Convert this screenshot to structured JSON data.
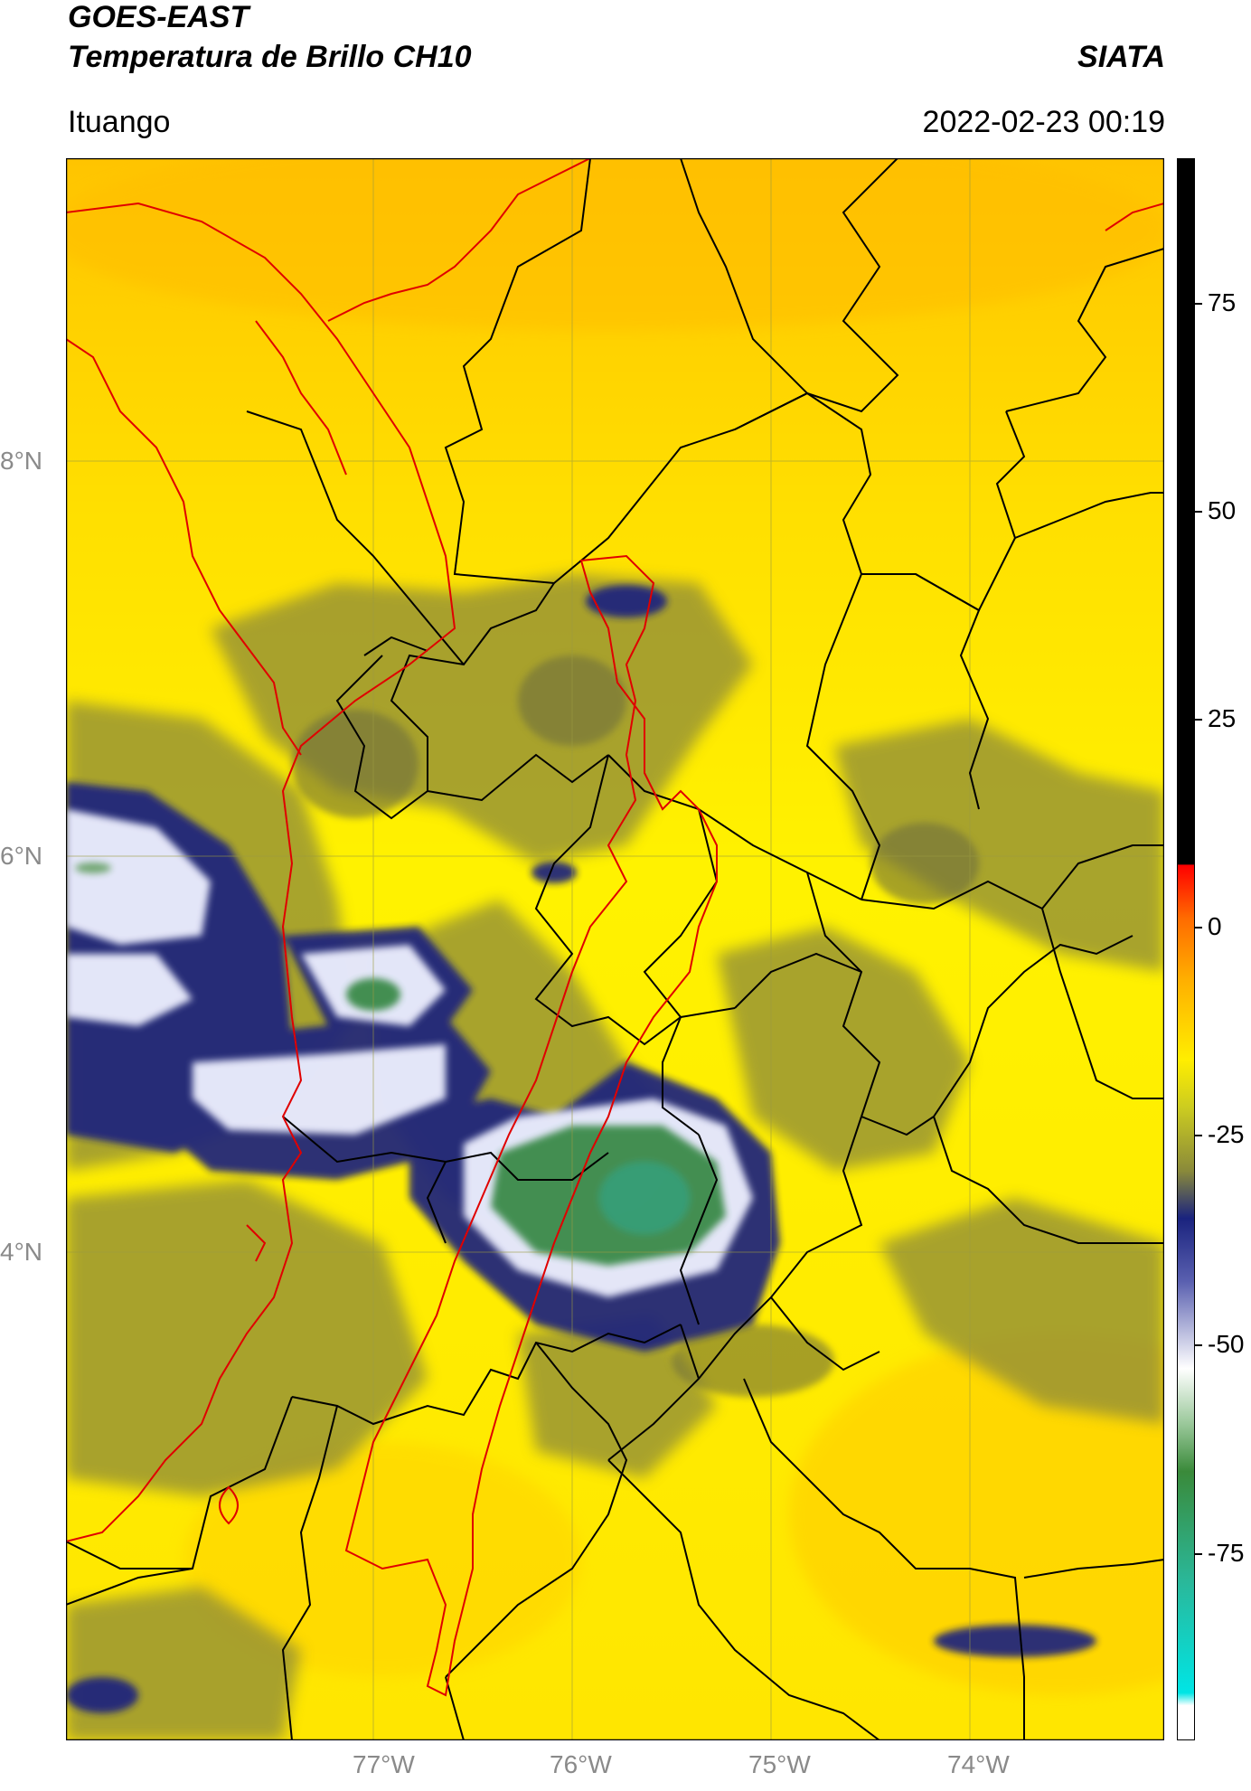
{
  "header": {
    "satellite": "GOES-EAST",
    "product": "Temperatura de Brillo CH10",
    "org": "SIATA",
    "region": "Ituango",
    "datetime": "2022-02-23 00:19"
  },
  "map": {
    "lon_ticks": [
      "77°W",
      "76°W",
      "75°W",
      "74°W"
    ],
    "lat_ticks": [
      "8°N",
      "6°N",
      "4°N"
    ],
    "colors": {
      "background_yellow": "#ffea00",
      "warm_orange": "#ffbf00",
      "cloud_olive": "#8c8c3c",
      "cloud_navy": "#1a237e",
      "cloud_white": "#f0f0ff",
      "cloud_green": "#3a8a4a",
      "border_black": "#000000",
      "boundary_red": "#e00000"
    }
  },
  "colorbar": {
    "ticks": [
      "75",
      "50",
      "25",
      "0",
      "-25",
      "-50",
      "-75"
    ],
    "colors_top_to_bottom": [
      "#000000",
      "#ff0000",
      "#ff9900",
      "#ffee00",
      "#8a8a3a",
      "#1a237e",
      "#ffffff",
      "#3a8a3a",
      "#2ab89a",
      "#00e5e5"
    ]
  }
}
